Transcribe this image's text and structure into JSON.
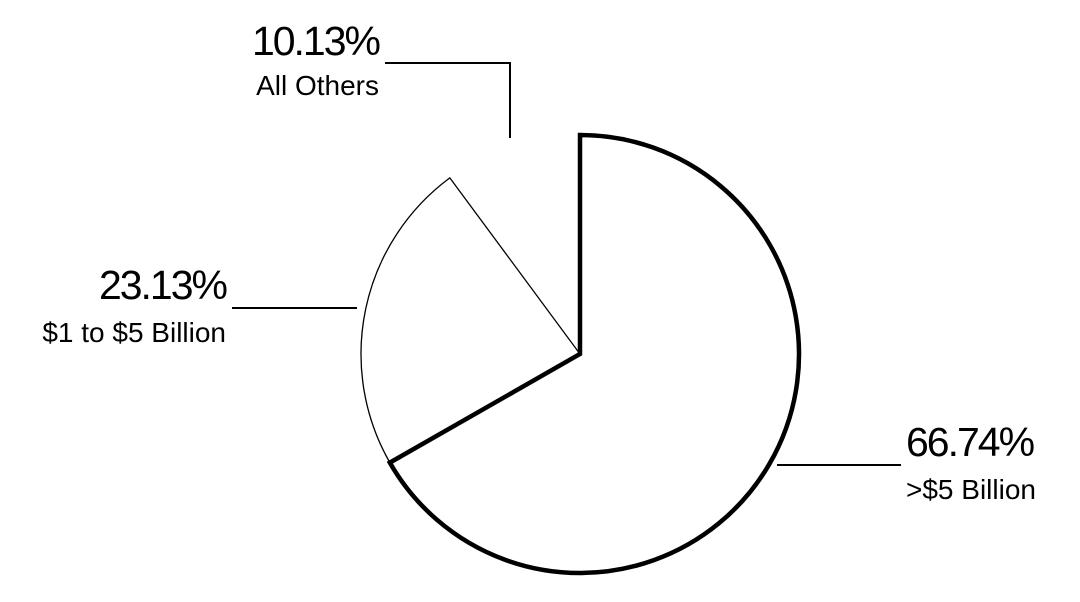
{
  "chart_data": {
    "type": "pie",
    "start_angle_deg": 0,
    "direction": "clockwise",
    "slices": [
      {
        "label": ">$5 Billion",
        "value": 66.74,
        "value_label": "66.74%",
        "emphasized": true
      },
      {
        "label": "$1 to $5 Billion",
        "value": 23.13,
        "value_label": "23.13%",
        "emphasized": false
      },
      {
        "label": "All Others",
        "value": 10.13,
        "value_label": "10.13%",
        "emphasized": false,
        "filled": false
      }
    ],
    "colors": {
      "fill": "#ffffff",
      "stroke": "#000000",
      "background": "#ffffff"
    }
  }
}
